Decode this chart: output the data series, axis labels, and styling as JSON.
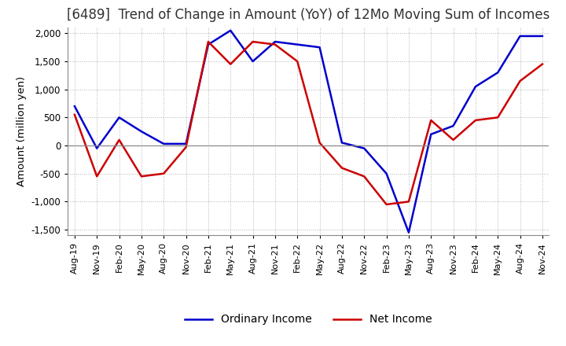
{
  "title": "[6489]  Trend of Change in Amount (YoY) of 12Mo Moving Sum of Incomes",
  "ylabel": "Amount (million yen)",
  "x_labels": [
    "Aug-19",
    "Nov-19",
    "Feb-20",
    "May-20",
    "Aug-20",
    "Nov-20",
    "Feb-21",
    "May-21",
    "Aug-21",
    "Nov-21",
    "Feb-22",
    "May-22",
    "Aug-22",
    "Nov-22",
    "Feb-23",
    "May-23",
    "Aug-23",
    "Nov-23",
    "Feb-24",
    "May-24",
    "Aug-24",
    "Nov-24"
  ],
  "ordinary_income": [
    700,
    -50,
    500,
    250,
    30,
    30,
    1800,
    2050,
    1500,
    1850,
    1800,
    1750,
    50,
    -50,
    -500,
    -1550,
    200,
    350,
    1050,
    1300,
    1950,
    1950
  ],
  "net_income": [
    550,
    -550,
    100,
    -550,
    -500,
    -30,
    1850,
    1450,
    1850,
    1800,
    1500,
    50,
    -400,
    -550,
    -1050,
    -1000,
    450,
    100,
    450,
    500,
    1150,
    1450
  ],
  "ordinary_color": "#0000cc",
  "net_color": "#cc0000",
  "ylim": [
    -1600,
    2100
  ],
  "yticks": [
    -1500,
    -1000,
    -500,
    0,
    500,
    1000,
    1500,
    2000
  ],
  "grid_color": "#aaaaaa",
  "background_color": "#ffffff",
  "title_fontsize": 12,
  "legend_labels": [
    "Ordinary Income",
    "Net Income"
  ]
}
